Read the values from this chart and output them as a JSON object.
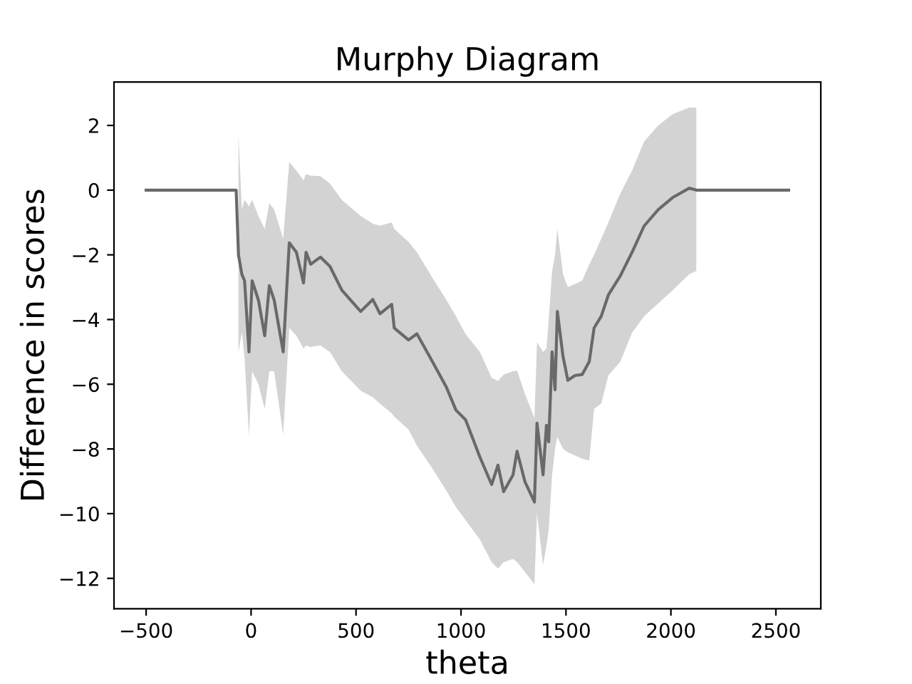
{
  "chart_data": {
    "type": "line",
    "title": "Murphy Diagram",
    "xlabel": "theta",
    "ylabel": "Difference in scores",
    "x": [
      -500,
      -71,
      -60,
      -44,
      -31,
      -10,
      5,
      35,
      65,
      87,
      110,
      153,
      182,
      216,
      250,
      262,
      284,
      330,
      376,
      432,
      522,
      580,
      614,
      670,
      682,
      750,
      790,
      863,
      931,
      976,
      1022,
      1090,
      1146,
      1176,
      1203,
      1248,
      1267,
      1305,
      1350,
      1362,
      1391,
      1407,
      1418,
      1434,
      1448,
      1459,
      1486,
      1509,
      1543,
      1577,
      1611,
      1634,
      1668,
      1702,
      1759,
      1815,
      1872,
      1940,
      2008,
      2087,
      2121,
      2561
    ],
    "series": [
      {
        "color": "#696969",
        "values": [
          0,
          0,
          -2.0,
          -2.6,
          -2.8,
          -5.0,
          -2.8,
          -3.4,
          -4.5,
          -2.95,
          -3.4,
          -5.0,
          -1.63,
          -1.92,
          -2.87,
          -1.92,
          -2.29,
          -2.07,
          -2.36,
          -3.09,
          -3.75,
          -3.38,
          -3.82,
          -3.53,
          -4.26,
          -4.63,
          -4.44,
          -5.29,
          -6.1,
          -6.8,
          -7.1,
          -8.25,
          -9.1,
          -8.5,
          -9.32,
          -8.8,
          -8.07,
          -9.02,
          -9.64,
          -7.2,
          -8.8,
          -7.27,
          -7.78,
          -5.0,
          -6.17,
          -3.75,
          -5.14,
          -5.88,
          -5.73,
          -5.7,
          -5.3,
          -4.26,
          -3.9,
          -3.24,
          -2.65,
          -1.92,
          -1.11,
          -0.6,
          -0.23,
          0.06,
          0.0,
          0
        ],
        "upper": [
          null,
          null,
          1.75,
          -0.6,
          -0.3,
          -0.5,
          -0.3,
          -0.8,
          -1.2,
          -0.4,
          -0.6,
          -1.5,
          0.87,
          0.6,
          0.3,
          0.5,
          0.45,
          0.43,
          0.2,
          -0.3,
          -0.8,
          -1.04,
          -1.1,
          -1.0,
          -1.2,
          -1.6,
          -1.92,
          -2.7,
          -3.4,
          -3.9,
          -4.45,
          -5.0,
          -5.8,
          -5.9,
          -5.7,
          -5.6,
          -5.58,
          -6.3,
          -7.05,
          -4.7,
          -5.0,
          -4.9,
          -4.0,
          -2.5,
          -2.0,
          -1.19,
          -2.6,
          -3.0,
          -2.9,
          -2.8,
          -2.3,
          -2.0,
          -1.5,
          -1.0,
          -0.1,
          0.6,
          1.5,
          2.0,
          2.35,
          2.55,
          2.55,
          null
        ],
        "lower": [
          null,
          null,
          -5.0,
          -4.4,
          -5.2,
          -7.6,
          -5.6,
          -6.0,
          -6.76,
          -5.6,
          -5.6,
          -7.56,
          -4.26,
          -4.5,
          -4.9,
          -4.8,
          -4.85,
          -4.8,
          -5.0,
          -5.6,
          -6.2,
          -6.4,
          -6.6,
          -6.9,
          -7.0,
          -7.4,
          -7.9,
          -8.6,
          -9.3,
          -9.8,
          -10.2,
          -10.8,
          -11.5,
          -11.7,
          -11.5,
          -11.4,
          -11.5,
          -11.8,
          -12.18,
          -9.98,
          -11.59,
          -11.0,
          -10.5,
          -8.8,
          -8.0,
          -7.63,
          -8.0,
          -8.1,
          -8.2,
          -8.3,
          -8.36,
          -6.76,
          -6.6,
          -5.73,
          -5.3,
          -4.41,
          -3.9,
          -3.5,
          -3.1,
          -2.6,
          -2.5,
          null
        ]
      }
    ],
    "xlim": [
      -653,
      2714
    ],
    "ylim": [
      -12.94,
      3.34
    ],
    "xticks": [
      {
        "value": -500,
        "label": "−500"
      },
      0,
      500,
      1000,
      1500,
      2000,
      2500
    ],
    "yticks": [
      {
        "value": -12,
        "label": "−12"
      },
      {
        "value": -10,
        "label": "−10"
      },
      {
        "value": -8,
        "label": "−8"
      },
      {
        "value": -6,
        "label": "−6"
      },
      {
        "value": -4,
        "label": "−4"
      },
      {
        "value": -2,
        "label": "−2"
      },
      0,
      2
    ],
    "grid": false
  }
}
